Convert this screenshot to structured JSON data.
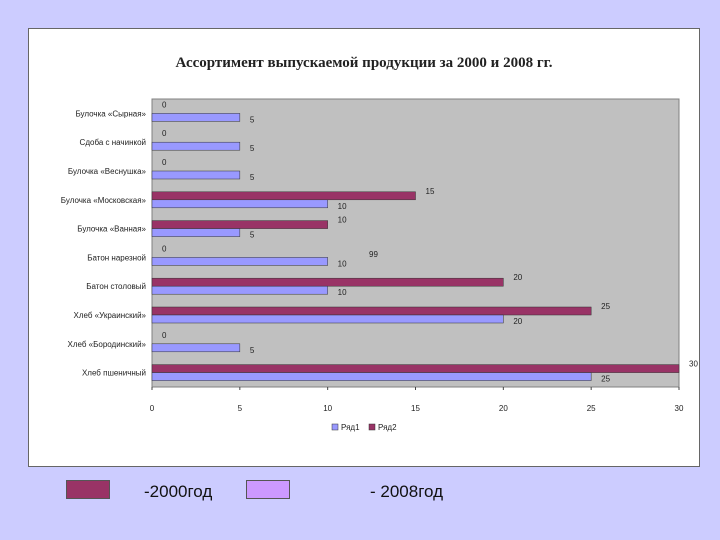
{
  "chart_data": {
    "type": "bar",
    "orientation": "horizontal",
    "title": "Ассортимент выпускаемой продукции за 2000  и 2008 гг.",
    "categories": [
      "Булочка «Сырная»",
      "Сдоба с начинкой",
      "Булочка «Веснушка»",
      "Булочка «Московская»",
      "Булочка «Ванная»",
      "Батон нарезной",
      "Батон столовый",
      "Хлеб «Украинский»",
      "Хлеб «Бородинский»",
      "Хлеб пшеничный"
    ],
    "series": [
      {
        "name": "Ряд1",
        "color": "#9999ff",
        "values": [
          5,
          5,
          5,
          10,
          5,
          10,
          10,
          20,
          5,
          25
        ]
      },
      {
        "name": "Ряд2",
        "color": "#993366",
        "values": [
          0,
          0,
          0,
          15,
          10,
          0,
          20,
          25,
          0,
          30
        ]
      }
    ],
    "stray_label": "99",
    "xlim": [
      0,
      30
    ],
    "xticks": [
      "0",
      "5",
      "10",
      "15",
      "20",
      "25",
      "30"
    ],
    "grid": false,
    "legend_position": "bottom",
    "plot_background": "#c0c0c0"
  },
  "legend_below": {
    "item_2000": {
      "label": "-2000год",
      "color": "#993366"
    },
    "item_2008": {
      "label": "- 2008год",
      "color": "#cc99ff"
    }
  }
}
